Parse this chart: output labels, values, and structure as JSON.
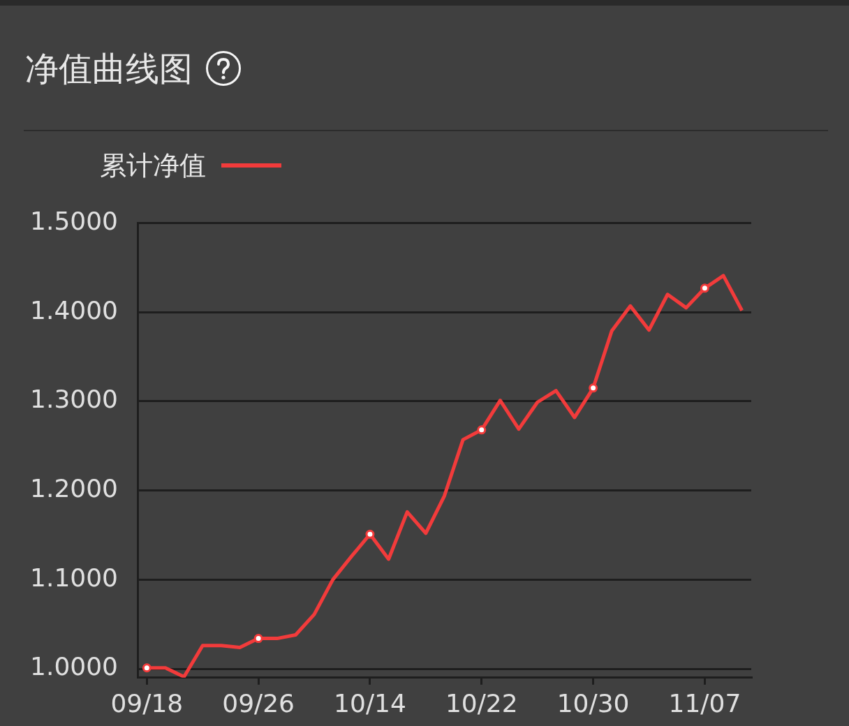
{
  "chart_data": {
    "type": "line",
    "title": "净值曲线图",
    "categories": [
      "09/18",
      null,
      null,
      null,
      null,
      null,
      "09/26",
      null,
      null,
      null,
      null,
      null,
      "10/14",
      null,
      null,
      null,
      null,
      null,
      "10/22",
      null,
      null,
      null,
      null,
      null,
      "10/30",
      null,
      null,
      null,
      null,
      null,
      "11/07",
      null,
      null
    ],
    "series": [
      {
        "name": "累计净值",
        "color": "#f23b3b",
        "values": [
          1.001,
          1.001,
          0.991,
          1.026,
          1.026,
          1.024,
          1.034,
          1.034,
          1.038,
          1.061,
          1.1,
          1.126,
          1.151,
          1.123,
          1.176,
          1.152,
          1.194,
          1.257,
          1.268,
          1.301,
          1.269,
          1.299,
          1.312,
          1.282,
          1.315,
          1.379,
          1.407,
          1.38,
          1.42,
          1.405,
          1.427,
          1.441,
          1.402
        ]
      }
    ],
    "ylim": [
      0.99,
      1.5
    ],
    "yticks": [
      {
        "value": 1,
        "label": "1.0000"
      },
      {
        "value": 1.1,
        "label": "1.1000"
      },
      {
        "value": 1.2,
        "label": "1.2000"
      },
      {
        "value": 1.3,
        "label": "1.3000"
      },
      {
        "value": 1.4,
        "label": "1.4000"
      },
      {
        "value": 1.5,
        "label": "1.5000"
      }
    ],
    "grid": "y",
    "legend": "top left",
    "line_style": "solid"
  }
}
